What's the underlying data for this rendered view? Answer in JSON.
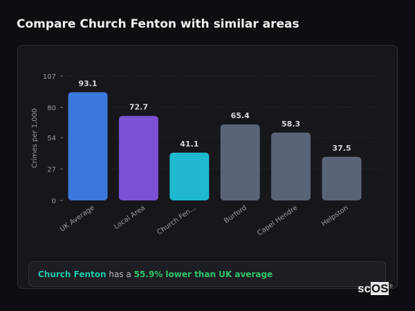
{
  "title": "Compare Church Fenton with similar areas",
  "chart_data": {
    "type": "bar",
    "categories": [
      "UK Average",
      "Local Area",
      "Church Fen...",
      "Burford",
      "Capel Hendre",
      "Helpston"
    ],
    "values": [
      93.1,
      72.7,
      41.1,
      65.4,
      58.3,
      37.5
    ],
    "data_labels": [
      "93.1",
      "72.7",
      "41.1",
      "65.4",
      "58.3",
      "37.5"
    ],
    "colors": [
      "#3a78dc",
      "#7b50d4",
      "#1fb8cf",
      "#596577",
      "#596577",
      "#596577"
    ],
    "ylabel": "Crimes per 1,000",
    "xlabel": "",
    "yticks": [
      0,
      27,
      54,
      80,
      107
    ],
    "ylim": [
      0,
      107
    ],
    "grid": true
  },
  "callout": {
    "area": "Church Fenton",
    "middle": " has a ",
    "comparison": "55.9% lower than UK average"
  },
  "logo": {
    "prefix": "sc",
    "suffix": "OS",
    "mark": "®"
  }
}
